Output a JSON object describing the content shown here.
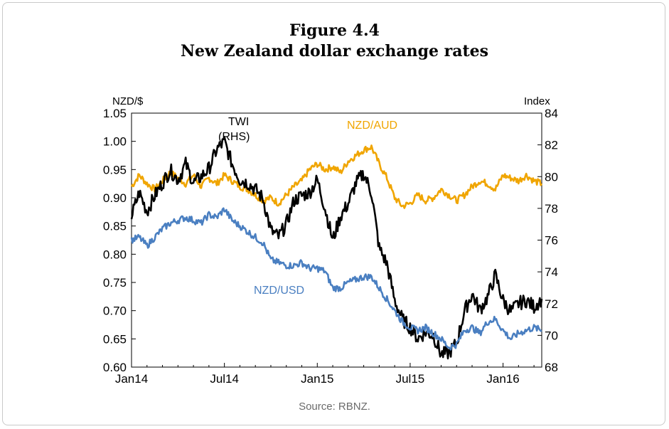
{
  "figure": {
    "label": "Figure 4.4",
    "title": "New Zealand dollar exchange rates",
    "source": "Source: RBNZ."
  },
  "chart_data": {
    "type": "line",
    "title": "New Zealand dollar exchange rates",
    "x_ticks": [
      "Jan14",
      "Jul14",
      "Jan15",
      "Jul15",
      "Jan16"
    ],
    "x_range": [
      "2014-01-01",
      "2016-03-15"
    ],
    "y_left": {
      "label": "NZD/$",
      "range": [
        0.6,
        1.05
      ],
      "ticks": [
        "0.60",
        "0.65",
        "0.70",
        "0.75",
        "0.80",
        "0.85",
        "0.90",
        "0.95",
        "1.00",
        "1.05"
      ]
    },
    "y_right": {
      "label": "Index",
      "range": [
        68,
        84
      ],
      "ticks": [
        "68",
        "70",
        "72",
        "74",
        "76",
        "78",
        "80",
        "82",
        "84"
      ]
    },
    "annotations": {
      "twi_line1": "TWI",
      "twi_line2": "(RHS)",
      "nzdaud": "NZD/AUD",
      "nzdusd": "NZD/USD"
    },
    "series": [
      {
        "name": "NZD/AUD",
        "axis": "left",
        "color": "#f0a500",
        "x_months": [
          0,
          0.5,
          1,
          1.5,
          2,
          2.5,
          3,
          3.5,
          4,
          4.5,
          5,
          5.5,
          6,
          6.5,
          7,
          7.5,
          8,
          8.5,
          9,
          9.5,
          10,
          10.5,
          11,
          11.5,
          12,
          12.5,
          13,
          13.5,
          14,
          14.5,
          15,
          15.5,
          16,
          16.5,
          17,
          17.5,
          18,
          18.5,
          19,
          19.5,
          20,
          20.5,
          21,
          21.5,
          22,
          22.5,
          23,
          23.5,
          24,
          24.5,
          25,
          25.5,
          26,
          26.5
        ],
        "values": [
          0.92,
          0.94,
          0.925,
          0.915,
          0.93,
          0.945,
          0.935,
          0.925,
          0.94,
          0.92,
          0.935,
          0.925,
          0.94,
          0.93,
          0.92,
          0.915,
          0.905,
          0.895,
          0.9,
          0.89,
          0.905,
          0.92,
          0.93,
          0.95,
          0.96,
          0.95,
          0.955,
          0.945,
          0.965,
          0.975,
          0.985,
          0.99,
          0.96,
          0.935,
          0.9,
          0.885,
          0.89,
          0.905,
          0.895,
          0.9,
          0.915,
          0.905,
          0.895,
          0.905,
          0.92,
          0.93,
          0.925,
          0.915,
          0.94,
          0.935,
          0.93,
          0.94,
          0.93,
          0.925
        ]
      },
      {
        "name": "TWI (RHS)",
        "axis": "right",
        "color": "#000000",
        "x_months": [
          0,
          0.5,
          1,
          1.5,
          2,
          2.5,
          3,
          3.5,
          4,
          4.5,
          5,
          5.5,
          6,
          6.5,
          7,
          7.5,
          8,
          8.5,
          9,
          9.5,
          10,
          10.5,
          11,
          11.5,
          12,
          12.5,
          13,
          13.5,
          14,
          14.5,
          15,
          15.5,
          16,
          16.5,
          17,
          17.5,
          18,
          18.5,
          19,
          19.5,
          20,
          20.5,
          21,
          21.5,
          22,
          22.5,
          23,
          23.5,
          24,
          24.5,
          25,
          25.5,
          26,
          26.5
        ],
        "values": [
          77.5,
          79.0,
          77.8,
          78.8,
          79.6,
          80.4,
          79.8,
          80.8,
          79.6,
          80.0,
          80.5,
          81.7,
          82.2,
          80.8,
          79.8,
          79.6,
          79.2,
          78.6,
          76.6,
          76.2,
          77.0,
          78.5,
          78.8,
          79.0,
          79.8,
          78.0,
          76.0,
          77.5,
          78.3,
          79.6,
          80.2,
          79.0,
          75.5,
          74.5,
          72.2,
          71.0,
          70.5,
          69.8,
          70.2,
          70.0,
          68.8,
          68.9,
          69.5,
          71.5,
          72.6,
          71.6,
          72.4,
          73.8,
          72.2,
          71.5,
          72.0,
          72.2,
          71.8,
          72.3
        ]
      },
      {
        "name": "NZD/USD",
        "axis": "left",
        "color": "#4a7fc1",
        "x_months": [
          0,
          0.5,
          1,
          1.5,
          2,
          2.5,
          3,
          3.5,
          4,
          4.5,
          5,
          5.5,
          6,
          6.5,
          7,
          7.5,
          8,
          8.5,
          9,
          9.5,
          10,
          10.5,
          11,
          11.5,
          12,
          12.5,
          13,
          13.5,
          14,
          14.5,
          15,
          15.5,
          16,
          16.5,
          17,
          17.5,
          18,
          18.5,
          19,
          19.5,
          20,
          20.5,
          21,
          21.5,
          22,
          22.5,
          23,
          23.5,
          24,
          24.5,
          25,
          25.5,
          26,
          26.5
        ],
        "values": [
          0.825,
          0.83,
          0.815,
          0.83,
          0.845,
          0.855,
          0.86,
          0.865,
          0.86,
          0.855,
          0.87,
          0.865,
          0.88,
          0.86,
          0.85,
          0.84,
          0.83,
          0.82,
          0.79,
          0.785,
          0.78,
          0.78,
          0.785,
          0.775,
          0.775,
          0.77,
          0.74,
          0.74,
          0.75,
          0.755,
          0.76,
          0.76,
          0.74,
          0.72,
          0.7,
          0.68,
          0.67,
          0.665,
          0.67,
          0.66,
          0.65,
          0.635,
          0.64,
          0.665,
          0.67,
          0.66,
          0.68,
          0.685,
          0.665,
          0.65,
          0.66,
          0.665,
          0.67,
          0.665
        ]
      }
    ]
  }
}
